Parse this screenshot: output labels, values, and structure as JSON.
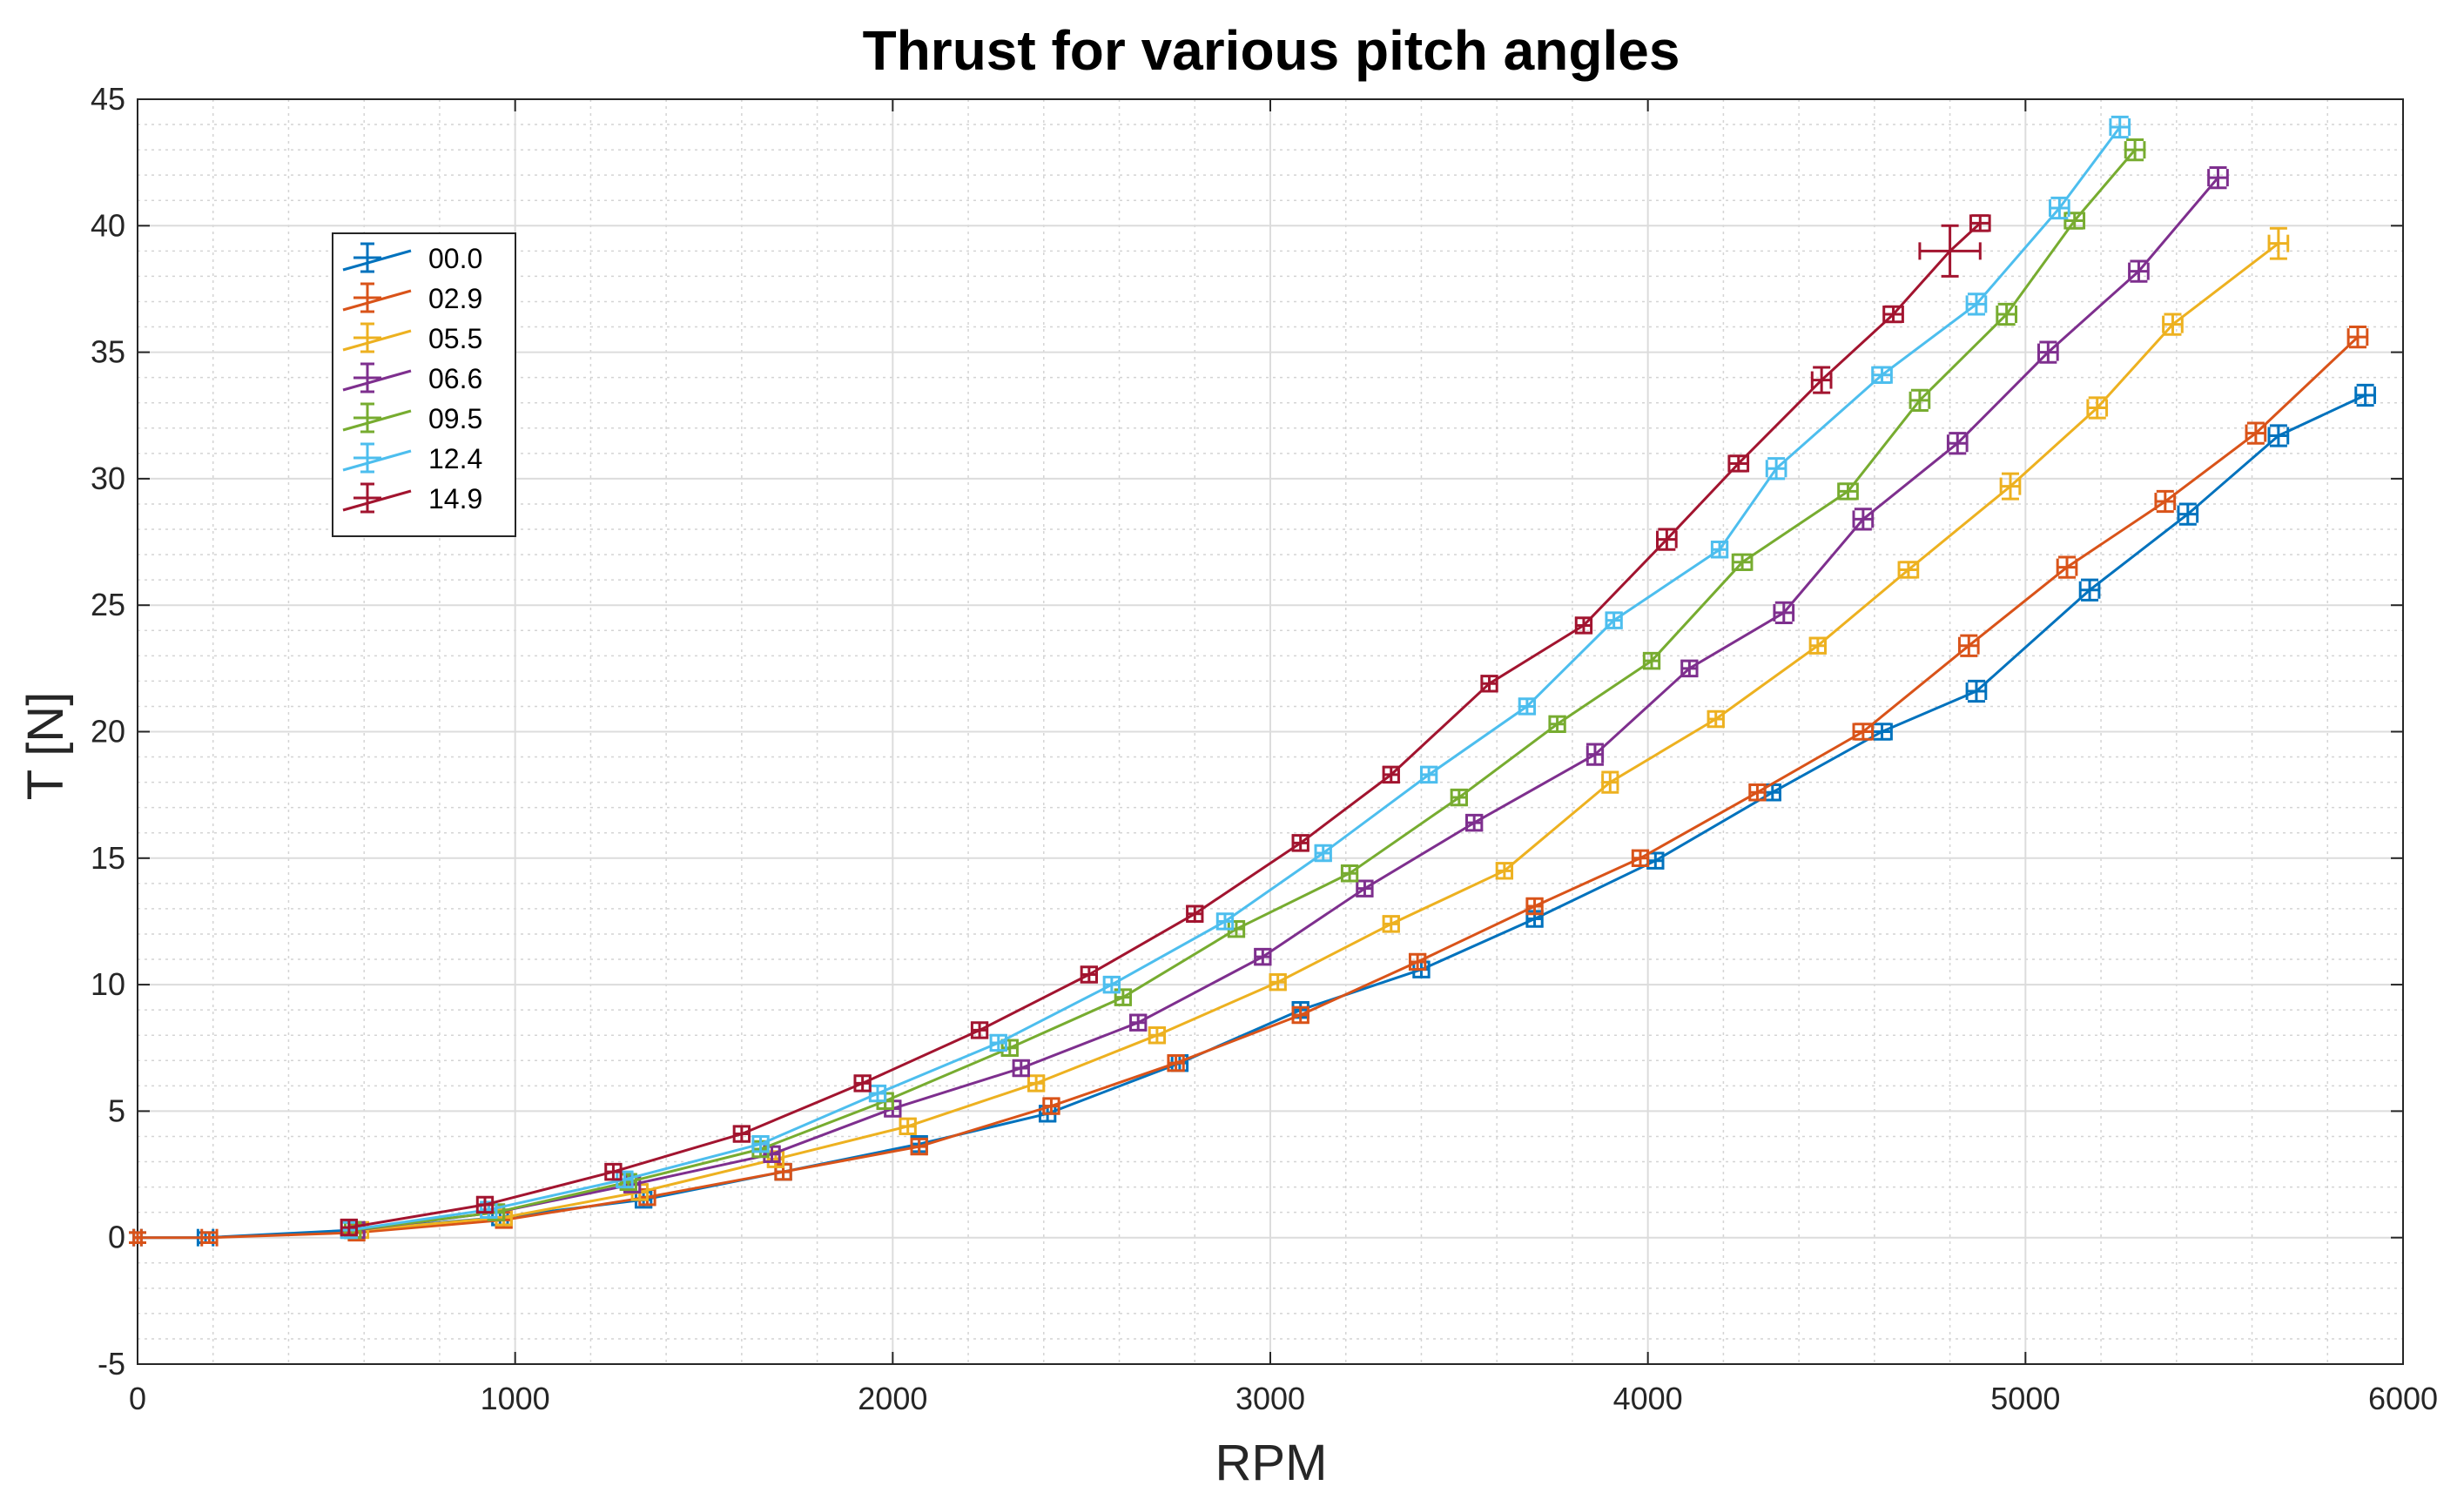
{
  "chart_data": {
    "type": "line",
    "title": "Thrust for various pitch angles",
    "xlabel": "RPM",
    "ylabel": "T [N]",
    "xlim": [
      0,
      6000
    ],
    "ylim": [
      -5,
      45
    ],
    "x_ticks": [
      0,
      1000,
      2000,
      3000,
      4000,
      5000,
      6000
    ],
    "y_ticks": [
      -5,
      0,
      5,
      10,
      15,
      20,
      25,
      30,
      35,
      40,
      45
    ],
    "x_tick_labels": [
      "0",
      "1000",
      "2000",
      "3000",
      "4000",
      "5000",
      "6000"
    ],
    "y_tick_labels": [
      "-5",
      "0",
      "5",
      "10",
      "15",
      "20",
      "25",
      "30",
      "35",
      "40",
      "45"
    ],
    "grid": true,
    "minor_grid": true,
    "legend_position": "top-left",
    "error_bars": true,
    "series": [
      {
        "name": "00.0",
        "color": "#0072BD",
        "x": [
          0,
          180,
          570,
          960,
          1340,
          1710,
          2070,
          2410,
          2760,
          3080,
          3400,
          3700,
          4020,
          4330,
          4620,
          4870,
          5170,
          5430,
          5670,
          5900
        ],
        "y": [
          0,
          0,
          0.3,
          0.8,
          1.5,
          2.6,
          3.7,
          4.9,
          6.9,
          9.0,
          10.6,
          12.6,
          14.9,
          17.6,
          20.0,
          21.6,
          25.6,
          28.6,
          31.7,
          33.3
        ],
        "xerr": [
          10,
          20,
          20,
          20,
          20,
          20,
          20,
          20,
          20,
          20,
          20,
          20,
          20,
          20,
          25,
          25,
          25,
          25,
          25,
          25
        ],
        "yerr": [
          0.2,
          0.2,
          0.3,
          0.3,
          0.3,
          0.3,
          0.3,
          0.3,
          0.3,
          0.3,
          0.3,
          0.3,
          0.3,
          0.3,
          0.3,
          0.4,
          0.4,
          0.4,
          0.4,
          0.4
        ]
      },
      {
        "name": "02.9",
        "color": "#D95319",
        "x": [
          0,
          190,
          580,
          970,
          1350,
          1710,
          2070,
          2420,
          2750,
          3080,
          3390,
          3700,
          3980,
          4290,
          4570,
          4850,
          5110,
          5370,
          5610,
          5880
        ],
        "y": [
          0,
          0,
          0.2,
          0.7,
          1.6,
          2.6,
          3.6,
          5.2,
          6.9,
          8.8,
          10.9,
          13.1,
          15.0,
          17.6,
          20.0,
          23.4,
          26.5,
          29.1,
          31.8,
          35.6
        ],
        "xerr": [
          10,
          20,
          20,
          20,
          20,
          20,
          20,
          20,
          20,
          20,
          20,
          20,
          20,
          20,
          25,
          25,
          25,
          25,
          25,
          25
        ],
        "yerr": [
          0.2,
          0.2,
          0.3,
          0.3,
          0.3,
          0.3,
          0.3,
          0.3,
          0.3,
          0.3,
          0.3,
          0.3,
          0.3,
          0.3,
          0.3,
          0.4,
          0.4,
          0.4,
          0.4,
          0.4
        ]
      },
      {
        "name": "05.5",
        "color": "#EDB120",
        "x": [
          590,
          970,
          1330,
          1690,
          2040,
          2380,
          2700,
          3020,
          3320,
          3620,
          3900,
          4180,
          4450,
          4690,
          4960,
          5190,
          5390,
          5670
        ],
        "y": [
          0.3,
          0.8,
          1.8,
          3.1,
          4.4,
          6.1,
          8.0,
          10.1,
          12.4,
          14.5,
          18.0,
          20.5,
          23.4,
          26.4,
          29.7,
          32.8,
          36.1,
          39.3
        ],
        "xerr": [
          20,
          20,
          20,
          20,
          20,
          20,
          20,
          20,
          20,
          20,
          20,
          20,
          20,
          25,
          25,
          25,
          25,
          25
        ],
        "yerr": [
          0.3,
          0.3,
          0.3,
          0.3,
          0.3,
          0.3,
          0.3,
          0.3,
          0.3,
          0.3,
          0.4,
          0.3,
          0.3,
          0.3,
          0.5,
          0.4,
          0.4,
          0.6
        ]
      },
      {
        "name": "06.6",
        "color": "#7E2F8E",
        "x": [
          580,
          950,
          1310,
          1680,
          2000,
          2340,
          2650,
          2980,
          3250,
          3540,
          3860,
          4110,
          4360,
          4570,
          4820,
          5060,
          5300,
          5510
        ],
        "y": [
          0.3,
          1.0,
          2.1,
          3.3,
          5.1,
          6.7,
          8.5,
          11.1,
          13.8,
          16.4,
          19.1,
          22.5,
          24.7,
          28.4,
          31.4,
          35.0,
          38.2,
          41.9
        ],
        "xerr": [
          20,
          20,
          20,
          20,
          20,
          20,
          20,
          20,
          20,
          20,
          20,
          20,
          25,
          25,
          25,
          25,
          25,
          25
        ],
        "yerr": [
          0.3,
          0.3,
          0.3,
          0.3,
          0.3,
          0.3,
          0.3,
          0.3,
          0.3,
          0.3,
          0.4,
          0.3,
          0.4,
          0.4,
          0.4,
          0.4,
          0.4,
          0.4
        ]
      },
      {
        "name": "09.5",
        "color": "#77AC30",
        "x": [
          570,
          950,
          1300,
          1650,
          1980,
          2310,
          2610,
          2910,
          3210,
          3500,
          3760,
          4010,
          4250,
          4530,
          4720,
          4950,
          5130,
          5290
        ],
        "y": [
          0.3,
          1.0,
          2.2,
          3.5,
          5.4,
          7.5,
          9.5,
          12.2,
          14.4,
          17.4,
          20.3,
          22.8,
          26.7,
          29.5,
          33.1,
          36.5,
          40.2,
          43.0
        ],
        "xerr": [
          20,
          20,
          20,
          20,
          20,
          20,
          20,
          20,
          20,
          20,
          20,
          20,
          25,
          25,
          25,
          25,
          25,
          25
        ],
        "yerr": [
          0.3,
          0.3,
          0.3,
          0.3,
          0.3,
          0.3,
          0.3,
          0.3,
          0.3,
          0.3,
          0.3,
          0.3,
          0.3,
          0.3,
          0.4,
          0.4,
          0.3,
          0.4
        ]
      },
      {
        "name": "12.4",
        "color": "#4DBEEE",
        "x": [
          560,
          930,
          1290,
          1650,
          1960,
          2280,
          2580,
          2880,
          3140,
          3420,
          3680,
          3910,
          4190,
          4340,
          4620,
          4870,
          5090,
          5250
        ],
        "y": [
          0.3,
          1.1,
          2.3,
          3.7,
          5.7,
          7.7,
          10.0,
          12.5,
          15.2,
          18.3,
          21.0,
          24.4,
          27.2,
          30.4,
          34.1,
          36.9,
          40.7,
          43.9
        ],
        "xerr": [
          20,
          20,
          20,
          20,
          20,
          20,
          20,
          20,
          20,
          20,
          20,
          20,
          20,
          25,
          25,
          25,
          25,
          25
        ],
        "yerr": [
          0.3,
          0.3,
          0.3,
          0.3,
          0.3,
          0.3,
          0.3,
          0.3,
          0.3,
          0.3,
          0.3,
          0.3,
          0.3,
          0.4,
          0.3,
          0.4,
          0.4,
          0.4
        ]
      },
      {
        "name": "14.9",
        "color": "#A2142F",
        "x": [
          560,
          920,
          1260,
          1600,
          1920,
          2230,
          2520,
          2800,
          3080,
          3320,
          3580,
          3830,
          4050,
          4240,
          4460,
          4650,
          4800,
          4880
        ],
        "y": [
          0.4,
          1.3,
          2.6,
          4.1,
          6.1,
          8.2,
          10.4,
          12.8,
          15.6,
          18.3,
          21.9,
          24.2,
          27.6,
          30.6,
          33.9,
          36.5,
          39.0,
          40.1
        ],
        "xerr": [
          20,
          20,
          20,
          20,
          20,
          20,
          20,
          20,
          20,
          20,
          20,
          20,
          25,
          25,
          25,
          25,
          80,
          25
        ],
        "yerr": [
          0.3,
          0.3,
          0.3,
          0.3,
          0.3,
          0.3,
          0.3,
          0.3,
          0.3,
          0.3,
          0.3,
          0.3,
          0.4,
          0.3,
          0.5,
          0.3,
          1.0,
          0.3
        ]
      }
    ]
  }
}
